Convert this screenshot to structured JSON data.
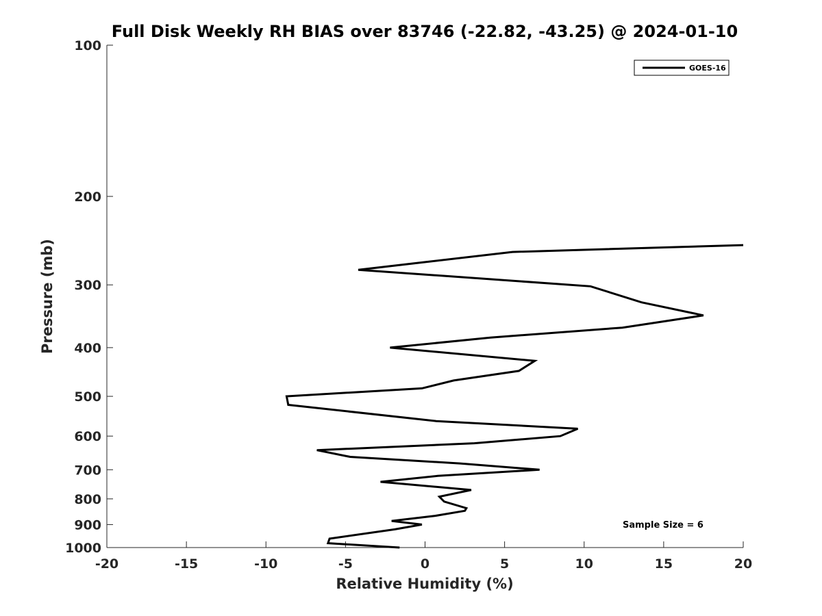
{
  "chart_data": {
    "type": "line",
    "title": "Full Disk Weekly RH BIAS over 83746 (-22.82, -43.25) @ 2024-01-10",
    "xlabel": "Relative Humidity (%)",
    "ylabel": "Pressure (mb)",
    "xlim": [
      -20,
      20
    ],
    "ylim": [
      100,
      1000
    ],
    "y_scale": "log",
    "y_inverted": true,
    "grid": false,
    "x_ticks": [
      -20,
      -15,
      -10,
      -5,
      0,
      5,
      10,
      15,
      20
    ],
    "x_tick_labels": [
      "-20",
      "-15",
      "-10",
      "-5",
      "0",
      "5",
      "10",
      "15",
      "20"
    ],
    "y_ticks": [
      100,
      200,
      300,
      400,
      500,
      600,
      700,
      800,
      900,
      1000
    ],
    "y_tick_labels": [
      "100",
      "200",
      "300",
      "400",
      "500",
      "600",
      "700",
      "800",
      "900",
      "1000"
    ],
    "legend": {
      "placement": "top-right",
      "entries": [
        "GOES-16"
      ]
    },
    "annotation": "Sample Size = 6",
    "line_color": "#000000",
    "series": [
      {
        "name": "GOES-16",
        "points": [
          {
            "x": 20.0,
            "y": 250
          },
          {
            "x": 5.5,
            "y": 258
          },
          {
            "x": -4.2,
            "y": 280
          },
          {
            "x": 10.4,
            "y": 302
          },
          {
            "x": 13.6,
            "y": 325
          },
          {
            "x": 17.5,
            "y": 345
          },
          {
            "x": 12.4,
            "y": 365
          },
          {
            "x": 4.1,
            "y": 382
          },
          {
            "x": -2.2,
            "y": 400
          },
          {
            "x": 6.9,
            "y": 425
          },
          {
            "x": 5.9,
            "y": 445
          },
          {
            "x": 1.8,
            "y": 465
          },
          {
            "x": -0.2,
            "y": 482
          },
          {
            "x": -8.7,
            "y": 500
          },
          {
            "x": -8.6,
            "y": 520
          },
          {
            "x": 0.7,
            "y": 560
          },
          {
            "x": 9.6,
            "y": 580
          },
          {
            "x": 8.5,
            "y": 600
          },
          {
            "x": 3.1,
            "y": 620
          },
          {
            "x": -6.8,
            "y": 640
          },
          {
            "x": -4.7,
            "y": 660
          },
          {
            "x": 2.2,
            "y": 680
          },
          {
            "x": 7.2,
            "y": 700
          },
          {
            "x": 0.8,
            "y": 720
          },
          {
            "x": -2.8,
            "y": 740
          },
          {
            "x": 2.9,
            "y": 768
          },
          {
            "x": 0.9,
            "y": 792
          },
          {
            "x": 1.2,
            "y": 810
          },
          {
            "x": 2.6,
            "y": 835
          },
          {
            "x": 2.5,
            "y": 845
          },
          {
            "x": 0.6,
            "y": 865
          },
          {
            "x": -2.1,
            "y": 885
          },
          {
            "x": -0.2,
            "y": 900
          },
          {
            "x": -1.9,
            "y": 920
          },
          {
            "x": -6.0,
            "y": 960
          },
          {
            "x": -6.1,
            "y": 980
          },
          {
            "x": -1.6,
            "y": 1000
          }
        ]
      }
    ]
  }
}
